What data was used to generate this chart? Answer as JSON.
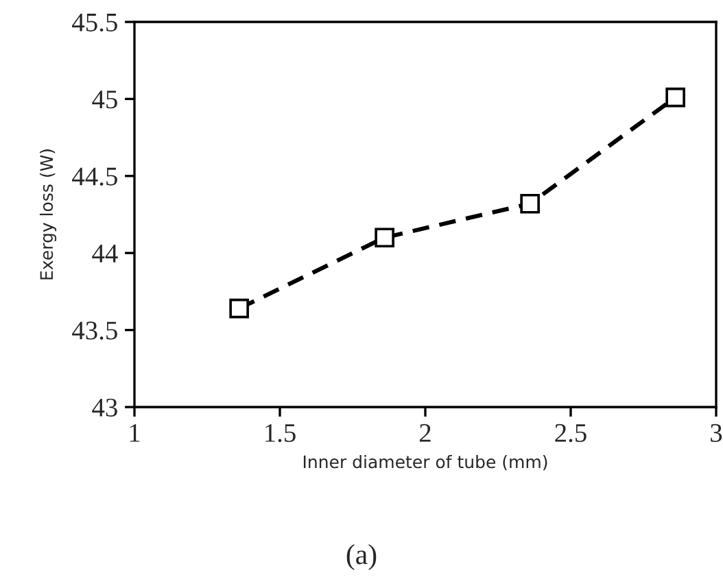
{
  "chart_data": {
    "type": "line",
    "xlabel": "Inner diameter of tube (mm)",
    "ylabel": "Exergy loss (W)",
    "x": [
      1.36,
      1.86,
      2.36,
      2.86
    ],
    "series": [
      {
        "color": "#000000",
        "values": [
          43.64,
          44.1,
          44.32,
          45.01
        ]
      }
    ],
    "xlim": [
      1,
      3
    ],
    "xticks": [
      1,
      1.5,
      2,
      2.5,
      3
    ],
    "ylim": [
      43,
      45.5
    ],
    "yticks": [
      43,
      43.5,
      44,
      44.5,
      45,
      45.5
    ],
    "marker": "square",
    "line_style": "dashed",
    "grid": false,
    "legend": false,
    "annotations": [
      "(a)"
    ]
  }
}
